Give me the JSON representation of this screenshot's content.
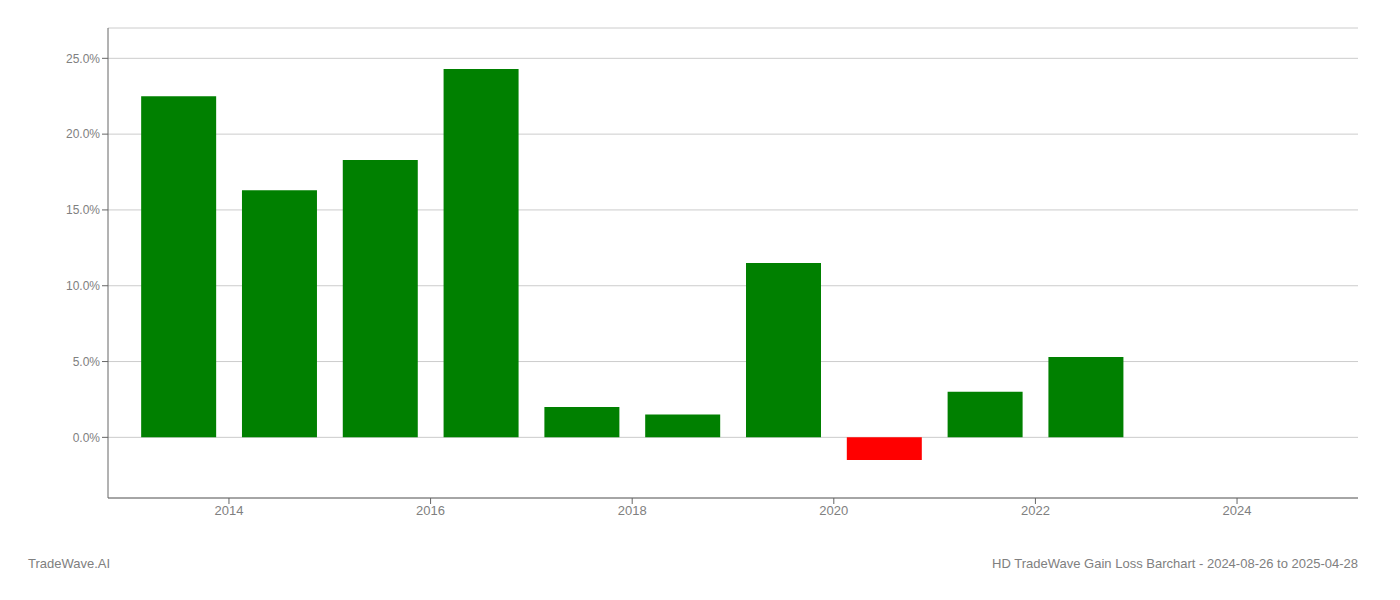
{
  "chart_data": {
    "type": "bar",
    "title": "HD TradeWave Gain Loss Barchart - 2024-08-26 to 2025-04-28",
    "annotations": [
      "TradeWave.AI"
    ],
    "x": [
      2013.5,
      2014.5,
      2015.5,
      2016.5,
      2017.5,
      2018.5,
      2019.5,
      2020.5,
      2021.5,
      2022.5,
      2023.5
    ],
    "values": [
      0.225,
      0.163,
      0.183,
      0.243,
      0.02,
      0.015,
      0.115,
      -0.015,
      0.03,
      0.053,
      0.0
    ],
    "colors": [
      "#008000",
      "#008000",
      "#008000",
      "#008000",
      "#008000",
      "#008000",
      "#008000",
      "#ff0000",
      "#008000",
      "#008000",
      "#008000"
    ],
    "xlim": [
      2012.8,
      2025.2
    ],
    "xticks": [
      2014,
      2016,
      2018,
      2020,
      2022,
      2024
    ],
    "ylim": [
      -0.04,
      0.27
    ],
    "yticks": [
      {
        "value": 0.0,
        "label": "0.0%"
      },
      {
        "value": 0.05,
        "label": "5.0%"
      },
      {
        "value": 0.1,
        "label": "10.0%"
      },
      {
        "value": 0.15,
        "label": "15.0%"
      },
      {
        "value": 0.2,
        "label": "20.0%"
      },
      {
        "value": 0.25,
        "label": "25.0%"
      }
    ],
    "grid": true
  }
}
